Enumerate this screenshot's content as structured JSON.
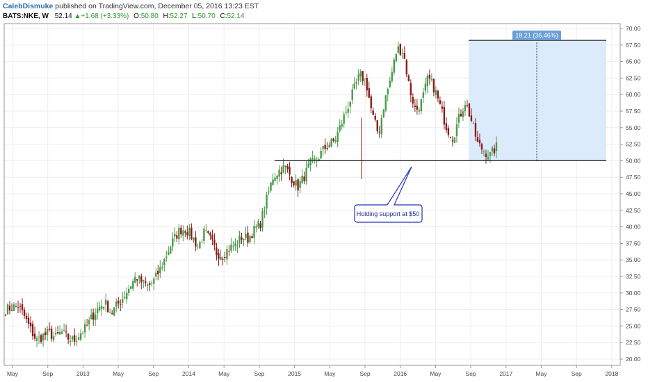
{
  "header": {
    "author": "CalebDismuke",
    "published_text": "published on TradingView.com, December 05, 2016 13:23 EST",
    "symbol": "BATS:NKE, W",
    "last": "52.14",
    "change": "▲+1.68 (+3.33%)",
    "open_label": "O:",
    "open_value": "50.80",
    "high_label": "H:",
    "high_value": "52.27",
    "low_label": "L:",
    "low_value": "50.70",
    "close_label": "C:",
    "close_value": "52.14"
  },
  "annotations": {
    "measure_label": "18.21 (36.46%)",
    "callout_text": "Holding support at $50"
  },
  "colors": {
    "up": "#4a9a4a",
    "down": "#8b1a1a",
    "grid": "#eeeeee",
    "measure_fill": "#dcebfc",
    "measure_label_bg": "#6a9fd8",
    "callout_border": "#2233bb"
  },
  "chart_data": {
    "type": "candlestick",
    "symbol": "BATS:NKE",
    "interval": "W",
    "ylim": [
      20,
      70
    ],
    "y_ticks": [
      "20.00",
      "22.50",
      "25.00",
      "27.50",
      "30.00",
      "32.50",
      "35.00",
      "37.50",
      "40.00",
      "42.50",
      "45.00",
      "47.50",
      "50.00",
      "52.50",
      "55.00",
      "57.50",
      "60.00",
      "62.50",
      "65.00",
      "67.50",
      "70.00"
    ],
    "x_ticks": [
      "May",
      "Sep",
      "2013",
      "May",
      "Sep",
      "2014",
      "May",
      "Sep",
      "2015",
      "May",
      "Sep",
      "2016",
      "May",
      "Sep",
      "2017",
      "May",
      "Sep",
      "2018"
    ],
    "support_level": 50.0,
    "measure": {
      "from": 50.0,
      "to": 68.2,
      "change": 18.21,
      "percent": 36.46
    },
    "weekly_close_anchors": [
      27.5,
      27.8,
      28.1,
      26.5,
      24.5,
      22.8,
      23.5,
      24.0,
      23.2,
      24.1,
      23.2,
      22.8,
      23.9,
      24.8,
      26.5,
      27.8,
      28.5,
      27.0,
      28.2,
      29.5,
      31.0,
      32.5,
      31.5,
      31.0,
      32.0,
      33.8,
      36.0,
      38.0,
      39.5,
      39.7,
      38.5,
      37.0,
      39.2,
      38.0,
      36.0,
      35.8,
      36.8,
      37.2,
      38.5,
      38.2,
      39.5,
      40.5,
      44.0,
      47.5,
      48.5,
      49.0,
      47.5,
      46.0,
      47.5,
      49.5,
      50.0,
      51.5,
      52.5,
      53.0,
      55.5,
      58.0,
      60.5,
      63.0,
      62.0,
      57.0,
      54.0,
      59.0,
      62.5,
      67.0,
      66.5,
      61.0,
      57.5,
      59.0,
      62.5,
      61.0,
      58.0,
      55.0,
      53.5,
      56.5,
      59.0,
      56.0,
      52.5,
      51.5,
      50.8,
      52.1
    ]
  }
}
